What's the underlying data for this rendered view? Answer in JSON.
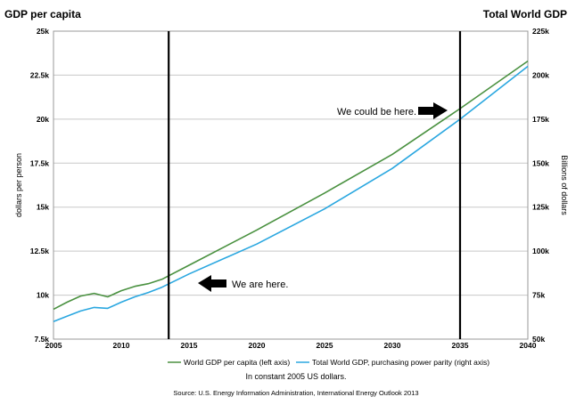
{
  "titles": {
    "left": "GDP per capita",
    "right": "Total World GDP"
  },
  "axes": {
    "left_label": "dollars per person",
    "right_label": "Billions of dollars"
  },
  "annotations": {
    "here": "We are here.",
    "could": "We could be here."
  },
  "legend": {
    "series1": "World GDP per capita (left axis)",
    "series2": "Total World GDP, purchasing power parity (right axis)"
  },
  "footer": {
    "note": "In constant 2005 US dollars.",
    "source": "Source: U.S. Energy Information Administration, International Energy Outlook 2013"
  },
  "colors": {
    "series1": "#4a9140",
    "series2": "#2aa7e0"
  },
  "chart_data": {
    "type": "line",
    "title": "",
    "xlim": [
      2005,
      2040
    ],
    "y_left_lim": [
      7500,
      25000
    ],
    "y_right_lim": [
      50000,
      225000
    ],
    "x_ticks": [
      2005,
      2010,
      2015,
      2020,
      2025,
      2030,
      2035,
      2040
    ],
    "x_tick_labels": [
      "2005",
      "2010",
      "2015",
      "2020",
      "2025",
      "2030",
      "2035",
      "2040"
    ],
    "y_left_ticks": [
      7500,
      10000,
      12500,
      15000,
      17500,
      20000,
      22500,
      25000
    ],
    "y_left_tick_labels": [
      "7.5k",
      "10k",
      "12.5k",
      "15k",
      "17.5k",
      "20k",
      "22.5k",
      "25k"
    ],
    "y_right_ticks": [
      50000,
      75000,
      100000,
      125000,
      150000,
      175000,
      200000,
      225000
    ],
    "y_right_tick_labels": [
      "50k",
      "75k",
      "100k",
      "125k",
      "150k",
      "175k",
      "200k",
      "225k"
    ],
    "vertical_markers": [
      2013.5,
      2035
    ],
    "grid": "horizontal",
    "legend_position": "bottom",
    "series": [
      {
        "name": "World GDP per capita (left axis)",
        "axis": "left",
        "x": [
          2005,
          2006,
          2007,
          2008,
          2009,
          2010,
          2011,
          2012,
          2013,
          2015,
          2020,
          2025,
          2030,
          2035,
          2040
        ],
        "values": [
          9200,
          9600,
          9950,
          10100,
          9900,
          10250,
          10500,
          10650,
          10900,
          11700,
          13700,
          15800,
          18000,
          20600,
          23300
        ]
      },
      {
        "name": "Total World GDP, purchasing power parity (right axis)",
        "axis": "right",
        "x": [
          2005,
          2006,
          2007,
          2008,
          2009,
          2010,
          2011,
          2012,
          2013,
          2015,
          2020,
          2025,
          2030,
          2035,
          2040
        ],
        "values": [
          60000,
          63000,
          66000,
          68000,
          67500,
          71000,
          74000,
          76500,
          79500,
          87000,
          104000,
          124000,
          147000,
          175000,
          205000
        ]
      }
    ]
  }
}
